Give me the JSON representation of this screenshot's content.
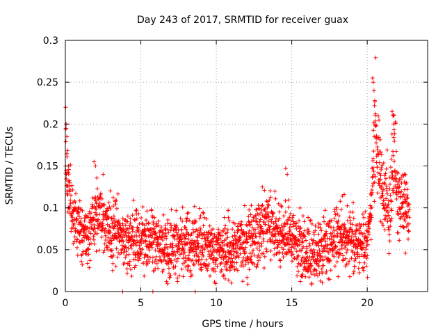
{
  "chart_data": {
    "type": "scatter",
    "title": "Day 243 of 2017, SRMTID for receiver guax",
    "xlabel": "GPS time / hours",
    "ylabel": "SRMTID / TECUs",
    "xlim": [
      0,
      24
    ],
    "ylim": [
      0,
      0.3
    ],
    "xticks": [
      0,
      5,
      10,
      15,
      20
    ],
    "xtick_labels": [
      "0",
      "5",
      "10",
      "15",
      "20"
    ],
    "yticks": [
      0,
      0.05,
      0.1,
      0.15,
      0.2,
      0.25,
      0.3
    ],
    "ytick_labels": [
      "0",
      "0.05",
      "0.1",
      "0.15",
      "0.2",
      "0.25",
      "0.3"
    ],
    "grid": true,
    "marker": "+",
    "color": "#ff0000",
    "series": [
      {
        "name": "SRMTID",
        "sample_interval_hours": 0.01,
        "x_start": 0,
        "x_end": 22.8,
        "envelope_hours": [
          0,
          0.1,
          0.3,
          0.6,
          1.0,
          1.5,
          2.0,
          2.5,
          3.0,
          4.0,
          5.0,
          6.0,
          7.0,
          8.0,
          9.0,
          10.0,
          11.0,
          12.0,
          13.0,
          13.5,
          14.0,
          14.5,
          15.0,
          16.0,
          17.0,
          18.0,
          19.0,
          19.7,
          20.0,
          20.3,
          20.5,
          20.8,
          21.0,
          21.5,
          21.8,
          22.0,
          22.5,
          22.8
        ],
        "envelope_values": [
          0.18,
          0.14,
          0.11,
          0.09,
          0.07,
          0.065,
          0.1,
          0.085,
          0.07,
          0.065,
          0.06,
          0.058,
          0.055,
          0.055,
          0.055,
          0.052,
          0.05,
          0.055,
          0.07,
          0.08,
          0.075,
          0.07,
          0.06,
          0.045,
          0.05,
          0.07,
          0.06,
          0.055,
          0.06,
          0.1,
          0.2,
          0.15,
          0.12,
          0.1,
          0.17,
          0.1,
          0.11,
          0.09
        ],
        "noise_spread": 0.022,
        "spikes": [
          [
            0.02,
            0.22
          ],
          [
            0.05,
            0.2
          ],
          [
            0.1,
            0.185
          ],
          [
            0.2,
            0.15
          ],
          [
            1.9,
            0.155
          ],
          [
            2.0,
            0.15
          ],
          [
            2.5,
            0.14
          ],
          [
            14.6,
            0.147
          ],
          [
            14.7,
            0.14
          ],
          [
            20.35,
            0.255
          ],
          [
            20.4,
            0.25
          ],
          [
            20.45,
            0.24
          ],
          [
            20.5,
            0.228
          ],
          [
            21.65,
            0.215
          ],
          [
            21.7,
            0.21
          ],
          [
            21.75,
            0.2
          ]
        ],
        "zero_points": [
          3.8,
          5.8,
          8.6
        ]
      }
    ]
  }
}
